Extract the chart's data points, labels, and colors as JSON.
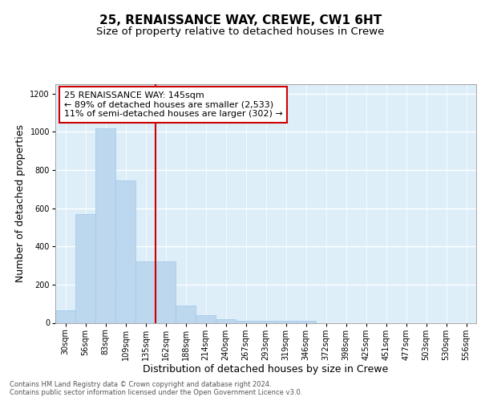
{
  "title": "25, RENAISSANCE WAY, CREWE, CW1 6HT",
  "subtitle": "Size of property relative to detached houses in Crewe",
  "xlabel": "Distribution of detached houses by size in Crewe",
  "ylabel": "Number of detached properties",
  "bin_labels": [
    "30sqm",
    "56sqm",
    "83sqm",
    "109sqm",
    "135sqm",
    "162sqm",
    "188sqm",
    "214sqm",
    "240sqm",
    "267sqm",
    "293sqm",
    "319sqm",
    "346sqm",
    "372sqm",
    "398sqm",
    "425sqm",
    "451sqm",
    "477sqm",
    "503sqm",
    "530sqm",
    "556sqm"
  ],
  "bar_values": [
    65,
    570,
    1020,
    745,
    320,
    320,
    90,
    40,
    20,
    10,
    10,
    10,
    10,
    0,
    0,
    0,
    0,
    0,
    0,
    0,
    0
  ],
  "bar_color": "#BDD7EE",
  "bar_edge_color": "#9EC8E8",
  "vline_x": 4.5,
  "vline_color": "#cc0000",
  "annotation_text": "25 RENAISSANCE WAY: 145sqm\n← 89% of detached houses are smaller (2,533)\n11% of semi-detached houses are larger (302) →",
  "annotation_box_color": "white",
  "annotation_box_edge": "#cc0000",
  "ylim": [
    0,
    1250
  ],
  "yticks": [
    0,
    200,
    400,
    600,
    800,
    1000,
    1200
  ],
  "background_color": "#ddeef9",
  "grid_color": "white",
  "footer_text": "Contains HM Land Registry data © Crown copyright and database right 2024.\nContains public sector information licensed under the Open Government Licence v3.0.",
  "title_fontsize": 11,
  "subtitle_fontsize": 9.5,
  "xlabel_fontsize": 9,
  "ylabel_fontsize": 9,
  "annotation_fontsize": 8,
  "footer_fontsize": 6,
  "tick_fontsize": 7
}
